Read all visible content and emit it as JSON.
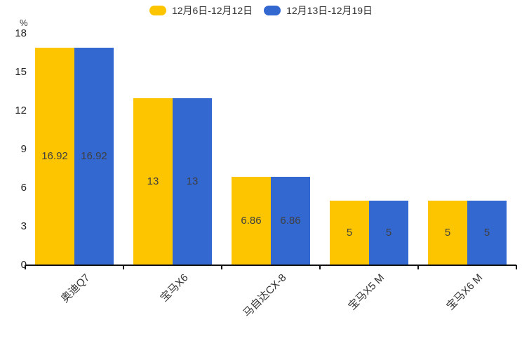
{
  "chart": {
    "y_unit": "%"
  },
  "chart_data": {
    "type": "bar",
    "title": "",
    "categories": [
      "奥迪Q7",
      "宝马X6",
      "马自达CX-8",
      "宝马X5 M",
      "宝马X6 M"
    ],
    "series": [
      {
        "name": "12月6日-12月12日",
        "color": "#FDC500",
        "values": [
          16.92,
          13,
          6.86,
          5,
          5
        ]
      },
      {
        "name": "12月13日-12月19日",
        "color": "#3468D1",
        "values": [
          16.92,
          13,
          6.86,
          5,
          5
        ]
      }
    ],
    "xlabel": "",
    "ylabel": "%",
    "ylim": [
      0,
      18
    ],
    "yticks": [
      0,
      3,
      6,
      9,
      12,
      15,
      18
    ],
    "grid": false,
    "legend_position": "top-center",
    "value_labels": "inside-center",
    "x_label_rotation": -45,
    "colors": {
      "axis": "#111111",
      "tick_label": "#222222",
      "category_label": "#333333",
      "value_label": "#3f3f3f",
      "legend_text": "#333333",
      "background": "#ffffff"
    }
  }
}
